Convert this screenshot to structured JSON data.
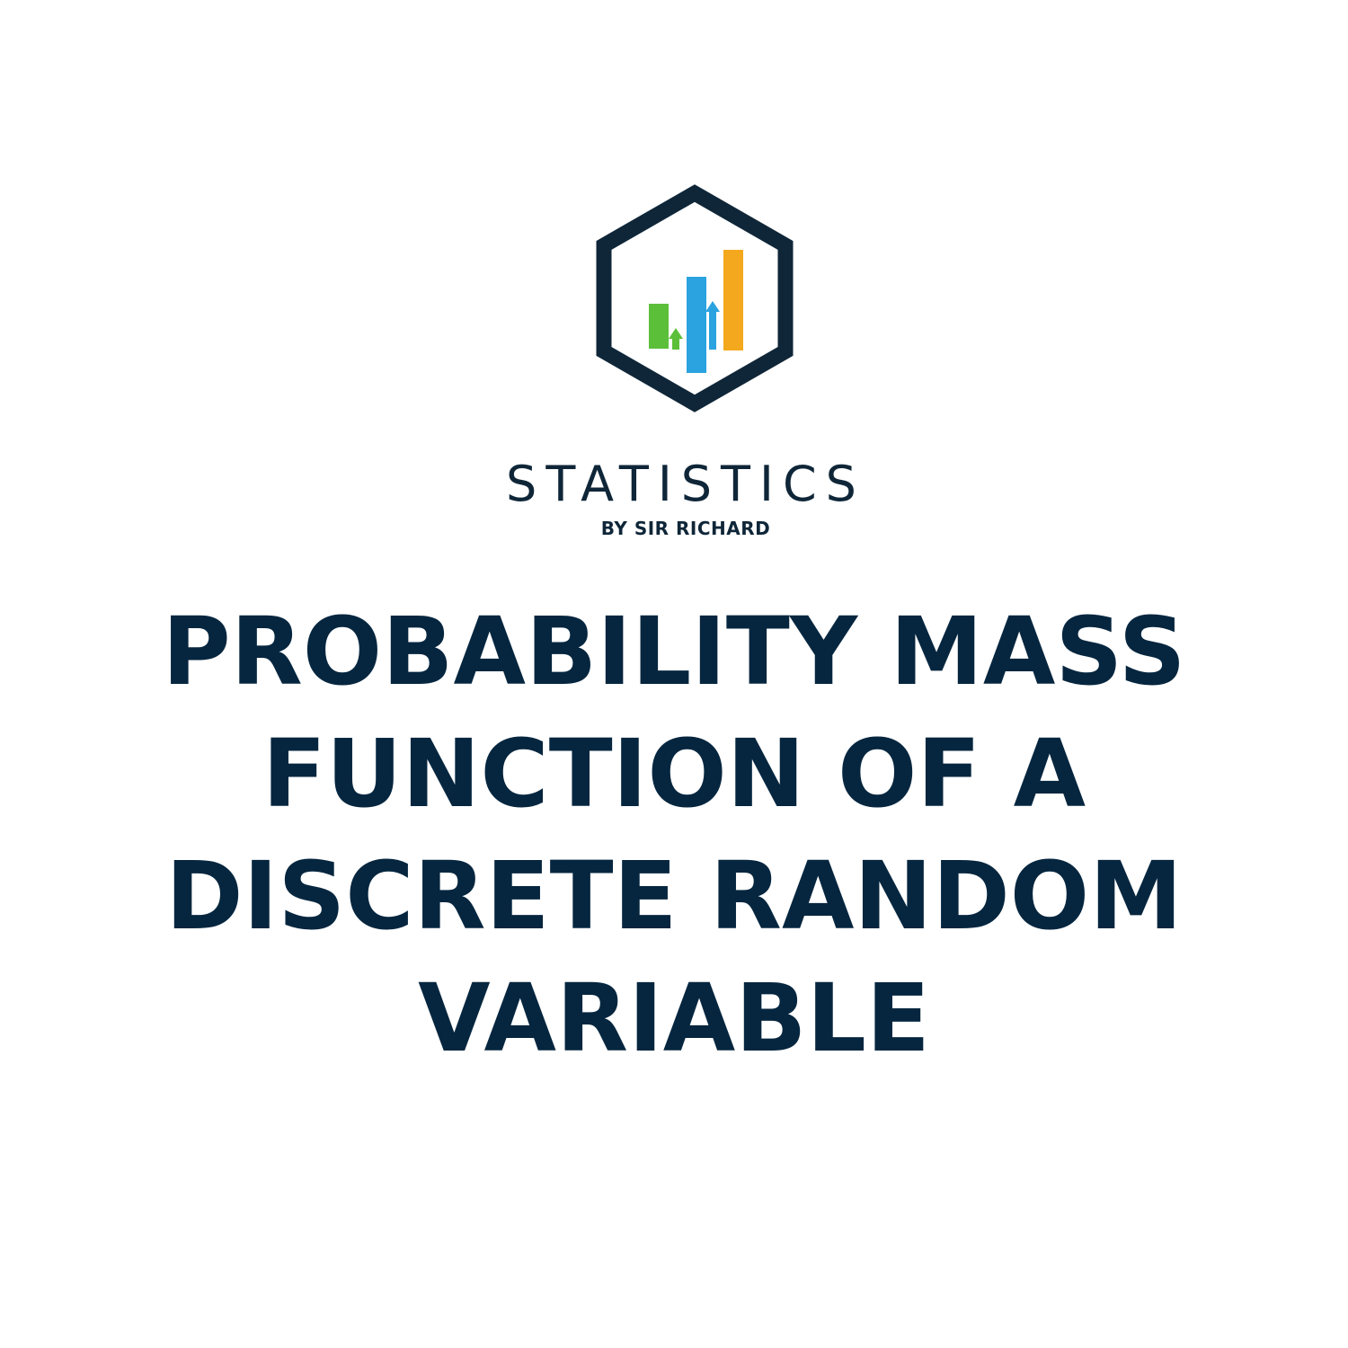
{
  "brand": {
    "logo_icon": "hexagon-bar-chart-icon",
    "name": "STATISTICS",
    "tagline": "BY SIR RICHARD",
    "colors": {
      "hexagon": "#0f2638",
      "bar_green": "#5cbf3a",
      "bar_blue": "#2aa3e0",
      "bar_orange": "#f4a81d"
    }
  },
  "title": {
    "lines": [
      "PROBABILITY MASS",
      "FUNCTION OF A",
      "DISCRETE RANDOM",
      "VARIABLE"
    ],
    "color": "#06263f"
  }
}
